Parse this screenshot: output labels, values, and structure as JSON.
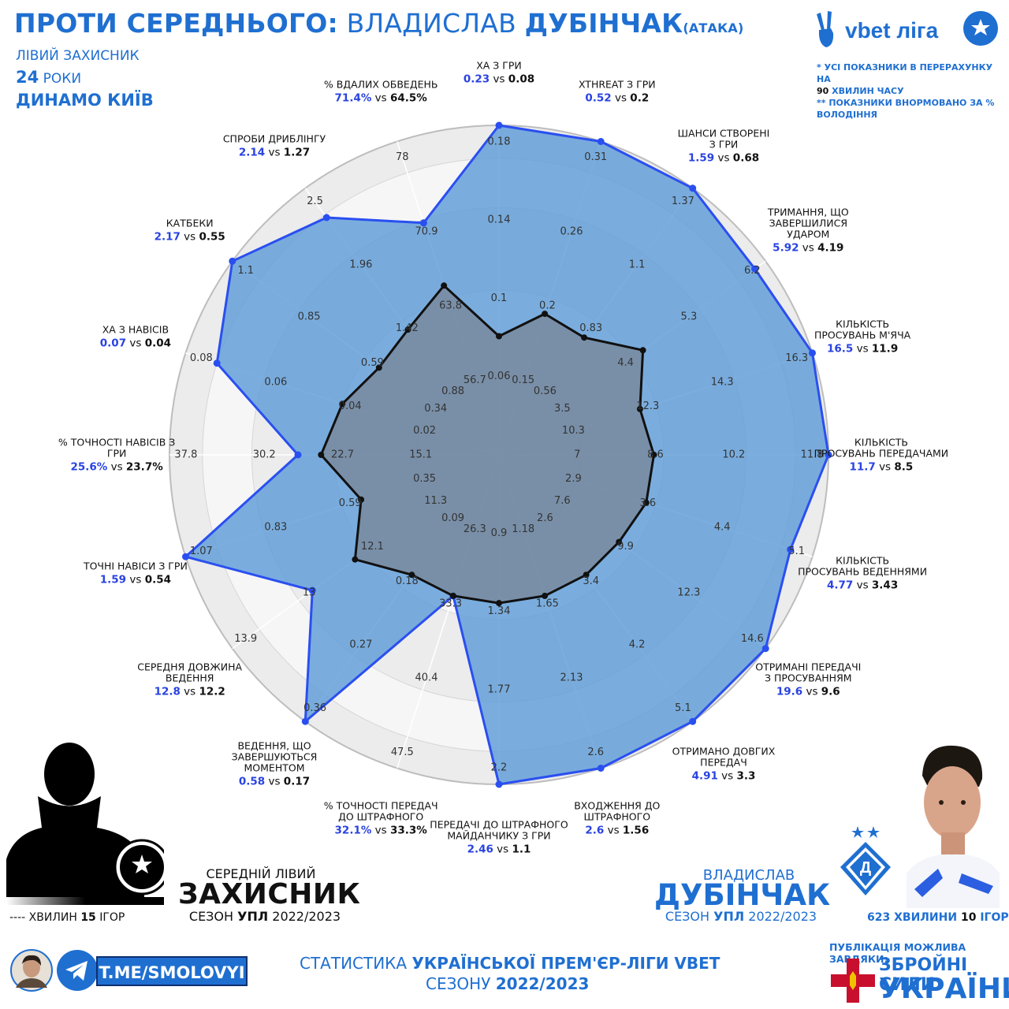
{
  "header": {
    "title_prefix": "ПРОТИ СЕРЕДНЬОГО:",
    "player_first": "ВЛАДИСЛАВ",
    "player_last": "ДУБІНЧАК",
    "mode": "(АТАКА)",
    "position": "ЛІВИЙ ЗАХИСНИК",
    "age_num": "24",
    "age_word": "РОКИ",
    "club": "ДИНАМО КИЇВ"
  },
  "league": {
    "name": "vbet ліга"
  },
  "notes": {
    "line1": "* УСІ ПОКАЗНИКИ В ПЕРЕРАХУНКУ НА",
    "line2_bold": "90",
    "line2_rest": "ХВИЛИН ЧАСУ",
    "line3": "** ПОКАЗНИКИ ВНОРМОВАНО ЗА %",
    "line4": "ВОЛОДІННЯ"
  },
  "chart_data": {
    "type": "radar",
    "scale_max": 1.0,
    "series": [
      {
        "name": "ВЛАДИСЛАВ ДУБІНЧАК",
        "color": "#2a4ff0",
        "fill": "#5b9bd8"
      },
      {
        "name": "СЕРЕДНІЙ ЛІВИЙ ЗАХИСНИК",
        "color": "#111111",
        "fill": "#7a8596"
      }
    ],
    "axes": [
      {
        "label": [
          "XA З ГРИ"
        ],
        "player": "0.23",
        "avg": "0.08",
        "player_r": 1.0,
        "avg_r": 0.36,
        "ticks": [
          "0.06",
          "0.1",
          "0.14",
          "0.18"
        ]
      },
      {
        "label": [
          "XTHREAT З ГРИ"
        ],
        "player": "0.52",
        "avg": "0.2",
        "player_r": 1.0,
        "avg_r": 0.45,
        "ticks": [
          "0.15",
          "0.2",
          "0.26",
          "0.31"
        ]
      },
      {
        "label": [
          "ШАНСИ СТВОРЕНІ",
          "З ГРИ"
        ],
        "player": "1.59",
        "avg": "0.68",
        "player_r": 1.0,
        "avg_r": 0.44,
        "ticks": [
          "0.56",
          "0.83",
          "1.1",
          "1.37"
        ]
      },
      {
        "label": [
          "ТРИМАННЯ, ЩО",
          "ЗАВЕРШИЛИСЯ",
          "УДАРОМ"
        ],
        "player": "5.92",
        "avg": "4.19",
        "player_r": 0.96,
        "avg_r": 0.54,
        "ticks": [
          "3.5",
          "4.4",
          "5.3",
          "6.2"
        ]
      },
      {
        "label": [
          "КІЛЬКІСТЬ",
          "ПРОСУВАНЬ М'ЯЧА"
        ],
        "player": "16.5",
        "avg": "11.9",
        "player_r": 1.0,
        "avg_r": 0.45,
        "ticks": [
          "10.3",
          "12.3",
          "14.3",
          "16.3"
        ]
      },
      {
        "label": [
          "КІЛЬКІСТЬ",
          "ПРОСУВАНЬ ПЕРЕДАЧАМИ"
        ],
        "player": "11.7",
        "avg": "8.5",
        "player_r": 1.0,
        "avg_r": 0.47,
        "ticks": [
          "7",
          "8.6",
          "10.2",
          "11.8"
        ]
      },
      {
        "label": [
          "КІЛЬКІСТЬ",
          "ПРОСУВАНЬ ВЕДЕННЯМИ"
        ],
        "player": "4.77",
        "avg": "3.43",
        "player_r": 0.93,
        "avg_r": 0.47,
        "ticks": [
          "2.9",
          "3.6",
          "4.4",
          "5.1"
        ]
      },
      {
        "label": [
          "ОТРИМАНІ ПЕРЕДАЧІ",
          "З ПРОСУВАННЯМ"
        ],
        "player": "19.6",
        "avg": "9.6",
        "player_r": 1.0,
        "avg_r": 0.45,
        "ticks": [
          "7.6",
          "9.9",
          "12.3",
          "14.6"
        ]
      },
      {
        "label": [
          "ОТРИМАНО ДОВГИХ",
          "ПЕРЕДАЧ"
        ],
        "player": "4.91",
        "avg": "3.3",
        "player_r": 1.0,
        "avg_r": 0.45,
        "ticks": [
          "2.6",
          "3.4",
          "4.2",
          "5.1"
        ]
      },
      {
        "label": [
          "ВХОДЖЕННЯ ДО",
          "ШТРАФНОГО"
        ],
        "player": "2.6",
        "avg": "1.56",
        "player_r": 1.0,
        "avg_r": 0.45,
        "ticks": [
          "1.18",
          "1.65",
          "2.13",
          "2.6"
        ]
      },
      {
        "label": [
          "ПЕРЕДАЧІ ДО ШТРАФНОГО",
          "МАЙДАНЧИКУ З ГРИ"
        ],
        "player": "2.46",
        "avg": "1.1",
        "player_r": 1.0,
        "avg_r": 0.45,
        "ticks": [
          "0.9",
          "1.34",
          "1.77",
          "2.2"
        ]
      },
      {
        "label": [
          "% ТОЧНОСТІ ПЕРЕДАЧ",
          "ДО ШТРАФНОГО"
        ],
        "player": "32.1%",
        "avg": "33.3%",
        "player_r": 0.45,
        "avg_r": 0.45,
        "ticks": [
          "26.3",
          "33.3",
          "40.4",
          "47.5"
        ]
      },
      {
        "label": [
          "ВЕДЕННЯ, ЩО",
          "ЗАВЕРШУЮТЬСЯ",
          "МОМЕНТОМ"
        ],
        "player": "0.58",
        "avg": "0.17",
        "player_r": 1.0,
        "avg_r": 0.45,
        "ticks": [
          "0.09",
          "0.18",
          "0.27",
          "0.36"
        ]
      },
      {
        "label": [
          "СЕРЕДНЯ ДОВЖИНА",
          "ВЕДЕННЯ"
        ],
        "player": "12.8",
        "avg": "12.2",
        "player_r": 0.7,
        "avg_r": 0.54,
        "ticks": [
          "11.3",
          "12.1",
          "13",
          "13.9"
        ]
      },
      {
        "label": [
          "ТОЧНІ НАВІСИ З ГРИ"
        ],
        "player": "1.59",
        "avg": "0.54",
        "player_r": 1.0,
        "avg_r": 0.44,
        "ticks": [
          "0.35",
          "0.59",
          "0.83",
          "1.07"
        ]
      },
      {
        "label": [
          "% ТОЧНОСТІ НАВІСІВ З",
          "ГРИ"
        ],
        "player": "25.6%",
        "avg": "23.7%",
        "player_r": 0.61,
        "avg_r": 0.54,
        "ticks": [
          "15.1",
          "22.7",
          "30.2",
          "37.8"
        ]
      },
      {
        "label": [
          "XA З НАВІСІВ"
        ],
        "player": "0.07",
        "avg": "0.04",
        "player_r": 0.9,
        "avg_r": 0.5,
        "ticks": [
          "0.02",
          "0.04",
          "0.06",
          "0.08"
        ]
      },
      {
        "label": [
          "КАТБЕКИ"
        ],
        "player": "2.17",
        "avg": "0.55",
        "player_r": 1.0,
        "avg_r": 0.45,
        "ticks": [
          "0.34",
          "0.59",
          "0.85",
          "1.1"
        ]
      },
      {
        "label": [
          "СПРОБИ ДРИБЛІНГУ"
        ],
        "player": "2.14",
        "avg": "1.27",
        "player_r": 0.89,
        "avg_r": 0.47,
        "ticks": [
          "0.88",
          "1.42",
          "1.96",
          "2.5"
        ]
      },
      {
        "label": [
          "%  ВДАЛИХ ОБВЕДЕНЬ"
        ],
        "player": "71.4%",
        "avg": "64.5%",
        "player_r": 0.74,
        "avg_r": 0.54,
        "ticks": [
          "56.7",
          "63.8",
          "70.9",
          "78"
        ]
      }
    ]
  },
  "avg_card": {
    "line1": "СЕРЕДНІЙ ЛІВИЙ",
    "line2": "ЗАХИСНИК",
    "season_word": "СЕЗОН",
    "season_league": "УПЛ",
    "season_years": "2022/2023",
    "minutes": "---- ХВИЛИН",
    "games_num": "15",
    "games_word": "ІГОР"
  },
  "player_card": {
    "line1": "ВЛАДИСЛАВ",
    "line2": "ДУБІНЧАК",
    "season_word": "СЕЗОН",
    "season_league": "УПЛ",
    "season_years": "2022/2023",
    "minutes_num": "623",
    "minutes_word": "ХВИЛИНИ",
    "games_num": "10",
    "games_word": "ІГОР"
  },
  "footer": {
    "telegram": "T.ME/SMOLOVYI",
    "stats_word": "СТАТИСТИКА",
    "stats_bold": "УКРАЇНСЬКОЇ ПРЕМ'ЄР-ЛІГИ VBET",
    "season_word": "СЕЗОНУ",
    "season_years": "2022/2023",
    "pub_note": "ПУБЛІКАЦІЯ МОЖЛИВА ЗАВДЯКИ:",
    "zsu_line1": "ЗБРОЙНІ СИЛИ",
    "zsu_line2": "УКРАЇНИ"
  },
  "colors": {
    "accent": "#1f6fd1",
    "player_line": "#2a4ff0",
    "player_fill": "#5b9bd8",
    "avg_line": "#111111"
  }
}
